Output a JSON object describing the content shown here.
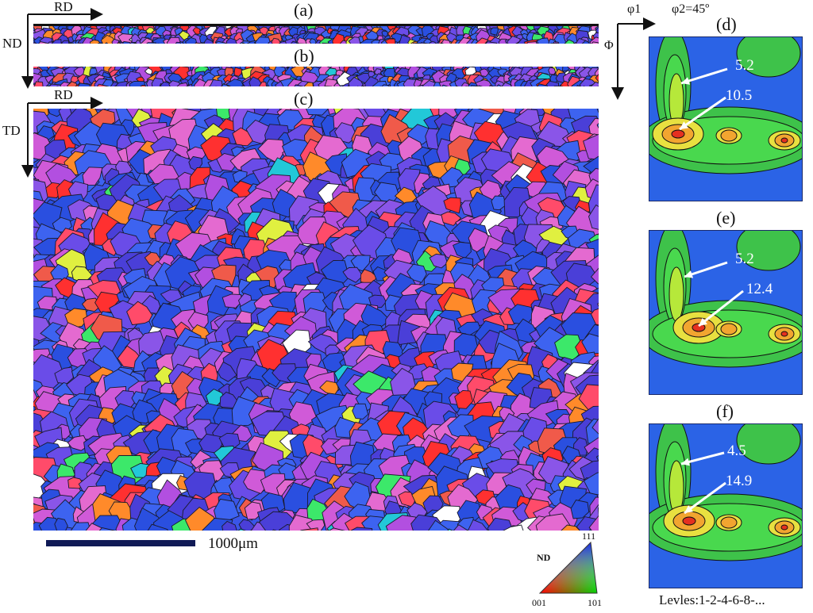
{
  "panels": {
    "a": "(a)",
    "b": "(b)",
    "c": "(c)",
    "d": "(d)",
    "e": "(e)",
    "f": "(f)"
  },
  "axes": {
    "rd_top": "RD",
    "nd": "ND",
    "rd_mid": "RD",
    "td": "TD",
    "phi1": "φ1",
    "phi2": "φ2=45º",
    "Phi": "Φ"
  },
  "scale_bar": {
    "label": "1000μm"
  },
  "ipf_key": {
    "title": "ND",
    "corner_111": "111",
    "corner_001": "001",
    "corner_101": "101"
  },
  "odf": {
    "d": {
      "low": "5.2",
      "high": "10.5"
    },
    "e": {
      "low": "5.2",
      "high": "12.4"
    },
    "f": {
      "low": "4.5",
      "high": "14.9"
    },
    "levels": "Levles:1-2-4-6-8-..."
  },
  "colors": {
    "grain_palette": [
      "#2a4fe0",
      "#3d63f0",
      "#4a3fd8",
      "#6a4ce8",
      "#8a55e8",
      "#b24fe0",
      "#d05ad8",
      "#e46ad0",
      "#ff4b6a",
      "#ff3030",
      "#f05a4a",
      "#ff8a2a",
      "#22c8d8",
      "#3ce86a",
      "#e0f040",
      "#ffffff"
    ],
    "odf_bg": "#2b63e6"
  }
}
